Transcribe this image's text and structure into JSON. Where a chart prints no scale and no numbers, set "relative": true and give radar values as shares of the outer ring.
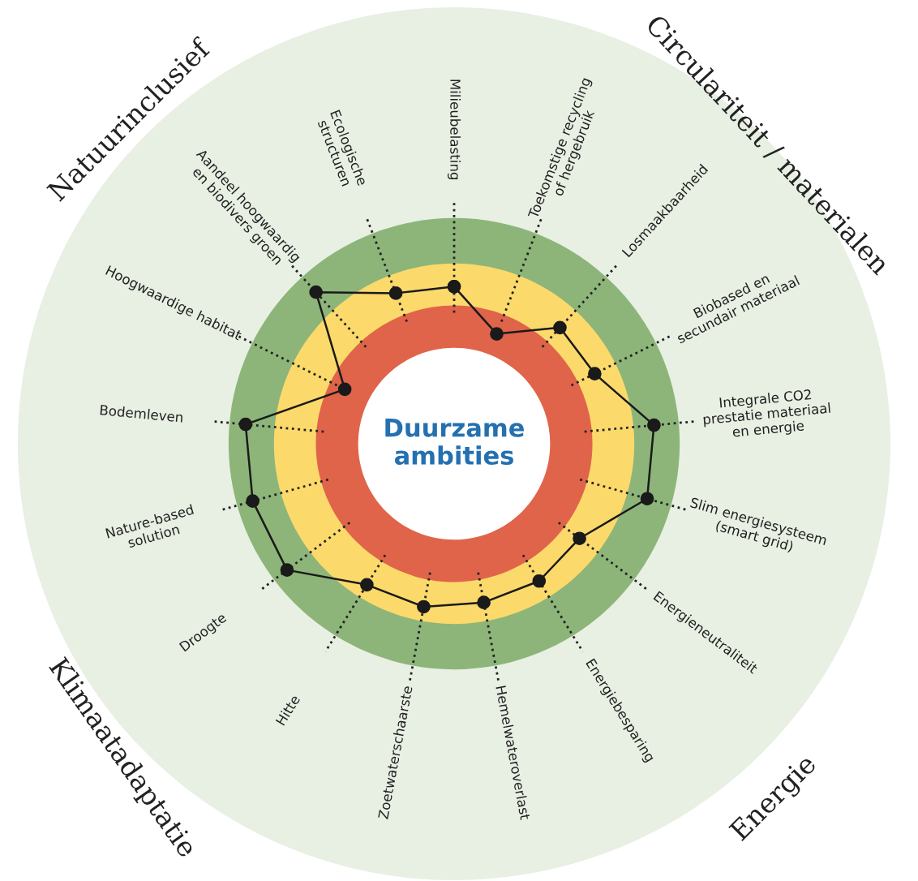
{
  "chart_data": {
    "type": "radar",
    "title": "Duurzame ambities",
    "relative": true,
    "categories": [
      "Milieubelasting",
      "Toekomstige recycling\nof hergebruik",
      "Losmaakbaarheid",
      "Biobased en\nsecundair materiaal",
      "Integrale CO2\nprestatie materiaal\nen energie",
      "Slim energiesysteem\n(smart grid)",
      "Energieneutraliteit",
      "Energiebesparing",
      "Hemelwateroverlast",
      "Zoetwaterschaarste",
      "Hitte",
      "Droogte",
      "Nature-based\nsolution",
      "Bodemleven",
      "Hoogwaardige habitat",
      "Aandeel hoogwaardig\nen biodivers groen",
      "Ecologische\nstructuren"
    ],
    "series": [
      {
        "color": "#1a1a1a",
        "values": [
          0.36,
          0.27,
          0.36,
          0.36,
          0.46,
          0.46,
          0.36,
          0.37,
          0.37,
          0.38,
          0.38,
          0.48,
          0.48,
          0.48,
          0.28,
          0.47,
          0.37
        ]
      }
    ],
    "annotations": [
      "Circulariteit / materialen",
      "Energie",
      "Klimaatadaptatie",
      "Natuurinclusief"
    ],
    "marker": "circle",
    "line_style": "solid",
    "grid": "x",
    "legend": false
  }
}
